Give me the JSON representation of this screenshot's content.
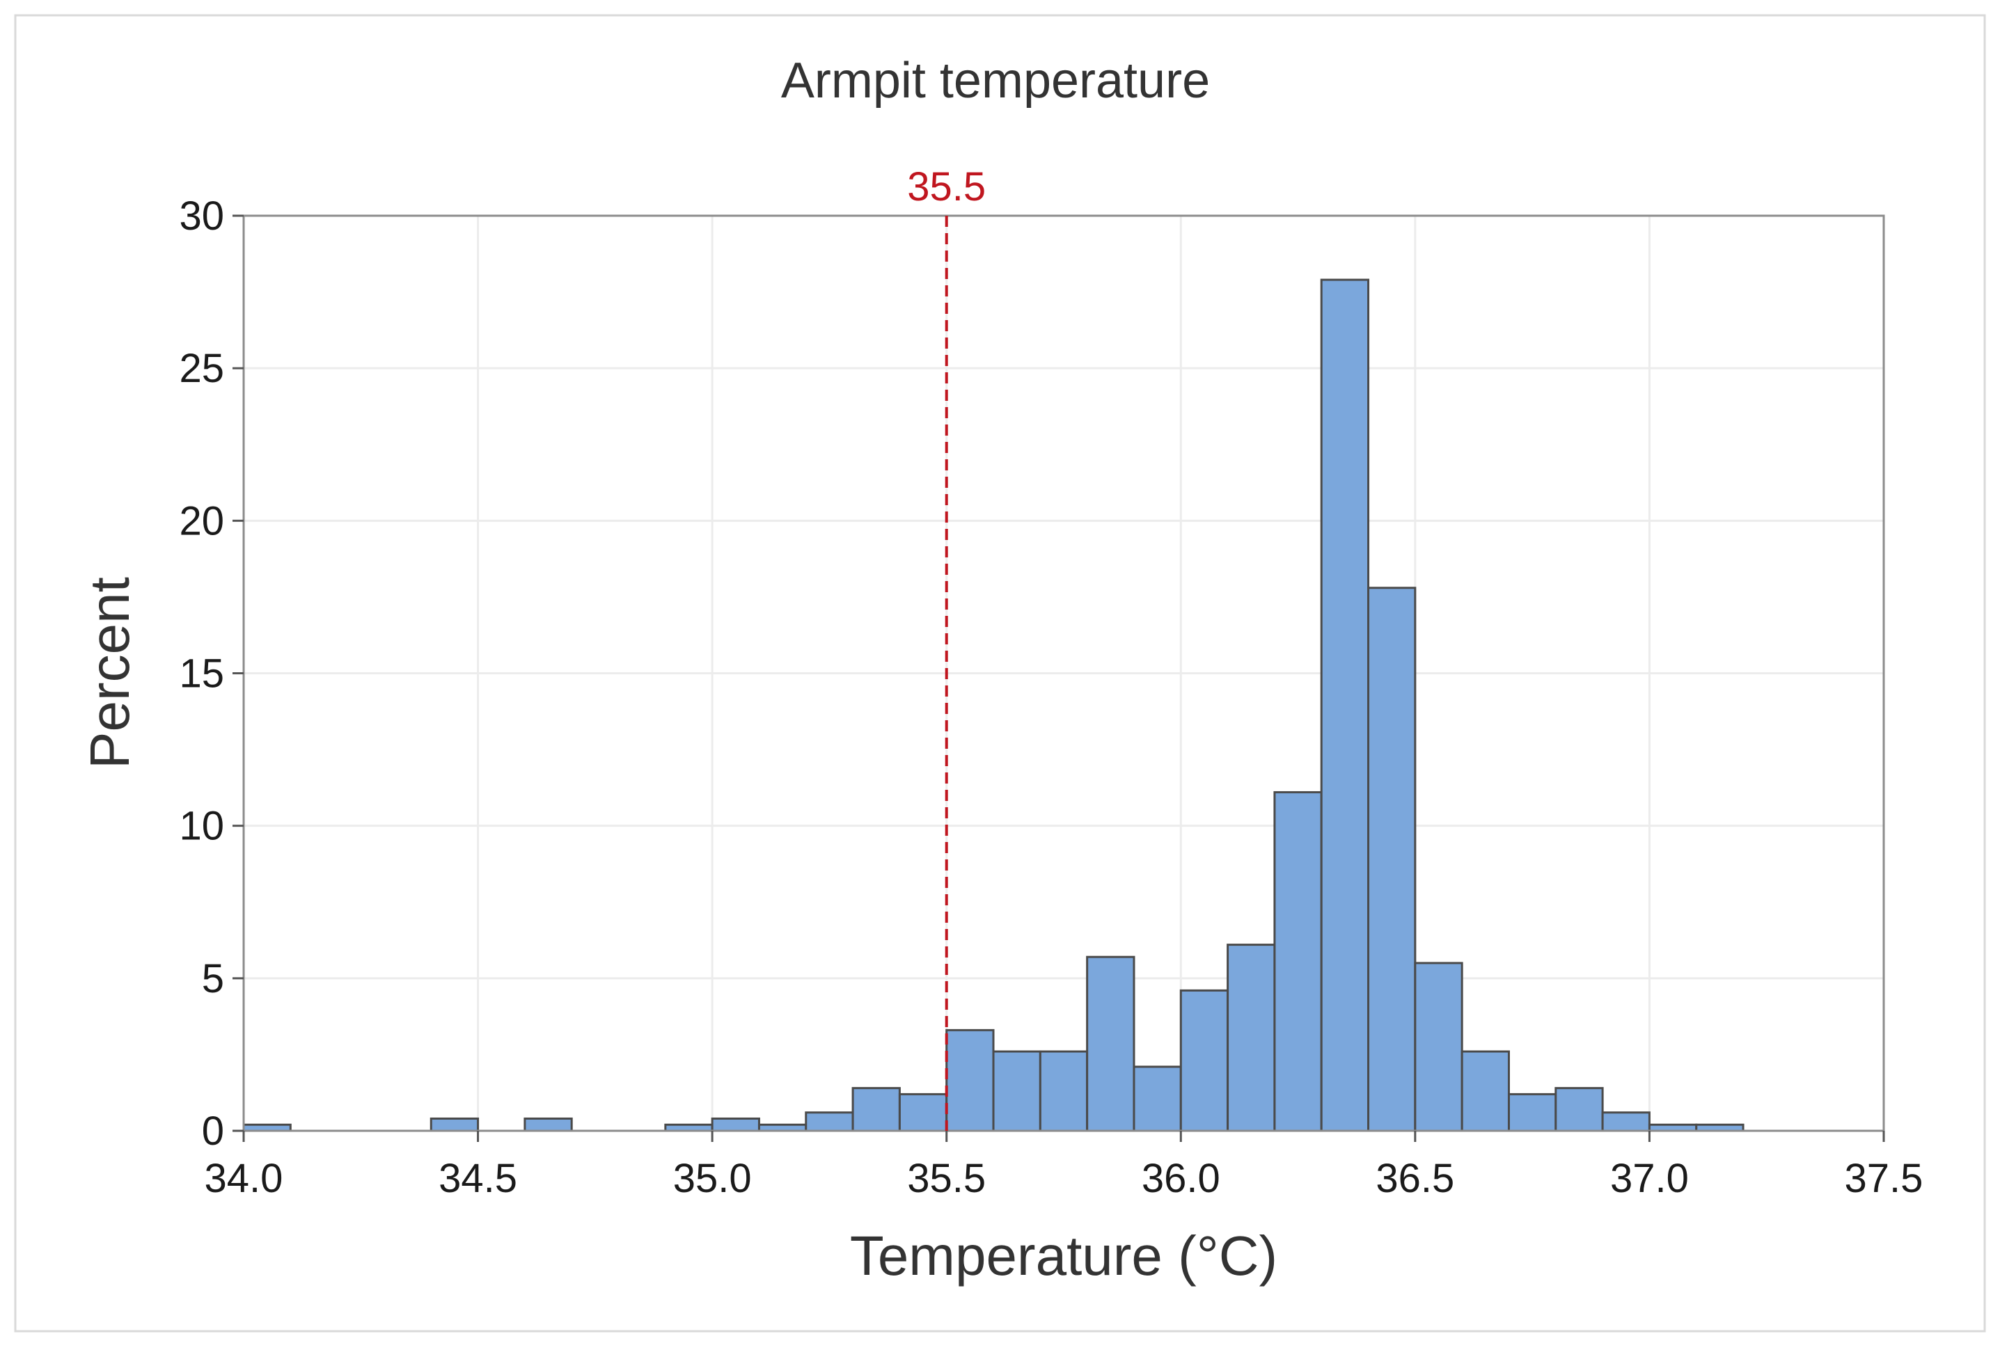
{
  "chart_data": {
    "type": "bar",
    "subtype": "histogram",
    "title": "Armpit temperature",
    "xlabel": "Temperature (°C)",
    "ylabel": "Percent",
    "xlim": [
      34.0,
      37.5
    ],
    "ylim": [
      0,
      30
    ],
    "xticks": [
      "34.0",
      "34.5",
      "35.0",
      "35.5",
      "36.0",
      "36.5",
      "37.0",
      "37.5"
    ],
    "yticks": [
      "0",
      "5",
      "10",
      "15",
      "20",
      "25",
      "30"
    ],
    "grid": true,
    "bin_width": 0.1,
    "bin_start": 34.0,
    "values": [
      0.2,
      0,
      0,
      0,
      0.4,
      0,
      0.4,
      0,
      0,
      0.2,
      0.4,
      0.2,
      0.6,
      1.4,
      1.2,
      3.3,
      2.6,
      2.6,
      5.7,
      2.1,
      4.6,
      6.1,
      11.1,
      27.9,
      17.8,
      5.5,
      2.6,
      1.2,
      1.4,
      0.6,
      0.2,
      0.2
    ],
    "reference_line": {
      "x": 35.5,
      "label": "35.5",
      "color": "#c0161f",
      "style": "dashed"
    },
    "bar_color": "#7ba7dc",
    "bar_edge_color": "#4a4a4a"
  }
}
